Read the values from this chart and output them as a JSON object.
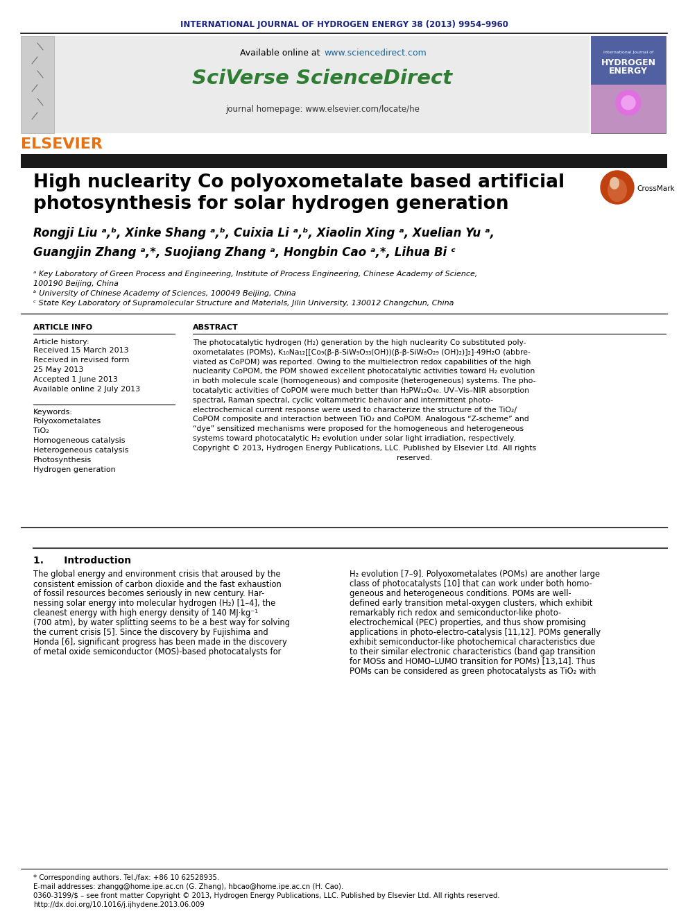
{
  "journal_header": "INTERNATIONAL JOURNAL OF HYDROGEN ENERGY 38 (2013) 9954–9960",
  "available_online_prefix": "Available online at ",
  "available_online_link": "www.sciencedirect.com",
  "sciverse_text": "SciVerse ScienceDirect",
  "journal_homepage": "journal homepage: www.elsevier.com/locate/he",
  "paper_title_line1": "High nuclearity Co polyoxometalate based artificial",
  "paper_title_line2": "photosynthesis for solar hydrogen generation",
  "article_info_title": "ARTICLE INFO",
  "article_history_title": "Article history:",
  "article_history": [
    "Received 15 March 2013",
    "Received in revised form",
    "25 May 2013",
    "Accepted 1 June 2013",
    "Available online 2 July 2013"
  ],
  "keywords_title": "Keywords:",
  "keywords": [
    "Polyoxometalates",
    "TiO₂",
    "Homogeneous catalysis",
    "Heterogeneous catalysis",
    "Photosynthesis",
    "Hydrogen generation"
  ],
  "abstract_title": "ABSTRACT",
  "abstract_lines": [
    "The photocatalytic hydrogen (H₂) generation by the high nuclearity Co substituted poly-",
    "oxometalates (POMs), K₁₀Na₁₂[[Co₉(β-β-SiW₉O₃₃(OH))(β-β-SiW₈O₂₉ (OH)₂)]₂]·49H₂O (abbre-",
    "viated as CoPOM) was reported. Owing to the multielectron redox capabilities of the high",
    "nuclearity CoPOM, the POM showed excellent photocatalytic activities toward H₂ evolution",
    "in both molecule scale (homogeneous) and composite (heterogeneous) systems. The pho-",
    "tocatalytic activities of CoPOM were much better than H₃PW₁₂O₄₀. UV–Vis–NIR absorption",
    "spectral, Raman spectral, cyclic voltammetric behavior and intermittent photo-",
    "electrochemical current response were used to characterize the structure of the TiO₂/",
    "CoPOM composite and interaction between TiO₂ and CoPOM. Analogous “Z-scheme” and",
    "“dye” sensitized mechanisms were proposed for the homogeneous and heterogeneous",
    "systems toward photocatalytic H₂ evolution under solar light irradiation, respectively.",
    "Copyright © 2013, Hydrogen Energy Publications, LLC. Published by Elsevier Ltd. All rights",
    "                                                                                    reserved."
  ],
  "authors_line1": "Rongji Liu ᵃ,ᵇ, Xinke Shang ᵃ,ᵇ, Cuixia Li ᵃ,ᵇ, Xiaolin Xing ᵃ, Xuelian Yu ᵃ,",
  "authors_line2": "Guangjin Zhang ᵃ,*, Suojiang Zhang ᵃ, Hongbin Cao ᵃ,*, Lihua Bi ᶜ",
  "affil1": "ᵃ Key Laboratory of Green Process and Engineering, Institute of Process Engineering, Chinese Academy of Science,",
  "affil1b": "100190 Beijing, China",
  "affil2": "ᵇ University of Chinese Academy of Sciences, 100049 Beijing, China",
  "affil3": "ᶜ State Key Laboratory of Supramolecular Structure and Materials, Jilin University, 130012 Changchun, China",
  "intro_title": "1.      Introduction",
  "intro_left_lines": [
    "The global energy and environment crisis that aroused by the",
    "consistent emission of carbon dioxide and the fast exhaustion",
    "of fossil resources becomes seriously in new century. Har-",
    "nessing solar energy into molecular hydrogen (H₂) [1–4], the",
    "cleanest energy with high energy density of 140 MJ·kg⁻¹",
    "(700 atm), by water splitting seems to be a best way for solving",
    "the current crisis [5]. Since the discovery by Fujishima and",
    "Honda [6], significant progress has been made in the discovery",
    "of metal oxide semiconductor (MOS)-based photocatalysts for"
  ],
  "intro_right_lines": [
    "H₂ evolution [7–9]. Polyoxometalates (POMs) are another large",
    "class of photocatalysts [10] that can work under both homo-",
    "geneous and heterogeneous conditions. POMs are well-",
    "defined early transition metal-oxygen clusters, which exhibit",
    "remarkably rich redox and semiconductor-like photo-",
    "electrochemical (PEC) properties, and thus show promising",
    "applications in photo-electro-catalysis [11,12]. POMs generally",
    "exhibit semiconductor-like photochemical characteristics due",
    "to their similar electronic characteristics (band gap transition",
    "for MOSs and HOMO–LUMO transition for POMs) [13,14]. Thus",
    "POMs can be considered as green photocatalysts as TiO₂ with"
  ],
  "footer_lines": [
    "* Corresponding authors. Tel./fax: +86 10 62528935.",
    "E-mail addresses: zhangg@home.ipe.ac.cn (G. Zhang), hbcao@home.ipe.ac.cn (H. Cao).",
    "0360-3199/$ – see front matter Copyright © 2013, Hydrogen Energy Publications, LLC. Published by Elsevier Ltd. All rights reserved.",
    "http://dx.doi.org/10.1016/j.ijhydene.2013.06.009"
  ],
  "header_color": "#1a237e",
  "sciverse_color": "#2e7d32",
  "elsevier_color": "#e87010",
  "link_color": "#1a6699",
  "bg_header_box": "#ebebeb",
  "dark_bar_color": "#1a1a1a",
  "body_text_color": "#000000"
}
